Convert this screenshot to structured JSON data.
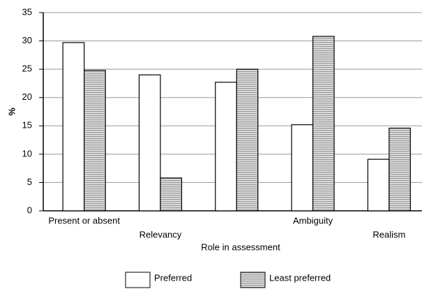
{
  "chart_data": {
    "type": "bar",
    "x_label": "Role in assessment",
    "y_label": "%",
    "categories": [
      "Present or absent",
      "Relevancy",
      null,
      "Ambiguity",
      "Realism"
    ],
    "series": [
      {
        "name": "Preferred",
        "color": "#ffffff",
        "values": [
          29.7,
          24,
          22.7,
          15.2,
          9.1
        ]
      },
      {
        "name": "Least preferred",
        "color": "#9a9a9a",
        "values": [
          24.8,
          5.8,
          25,
          30.8,
          14.6
        ]
      }
    ],
    "ylim": [
      0,
      35
    ],
    "yticks": [
      0,
      5,
      10,
      15,
      20,
      25,
      30,
      35
    ],
    "grid": true,
    "legend": "bottom"
  }
}
